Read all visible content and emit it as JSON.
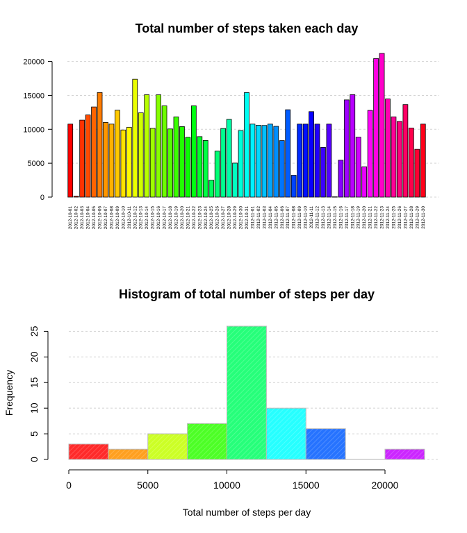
{
  "chart_data": [
    {
      "type": "bar",
      "title": "Total number of steps taken each day",
      "xlabel": "",
      "ylabel": "",
      "ylim": [
        0,
        21800
      ],
      "yticks": [
        0,
        5000,
        10000,
        15000,
        20000
      ],
      "grid": true,
      "colors": "rainbow palette (red → orange → yellow → green → cyan → blue → magenta → red)",
      "categories": [
        "2012-10-01",
        "2012-10-02",
        "2012-10-03",
        "2012-10-04",
        "2012-10-05",
        "2012-10-06",
        "2012-10-07",
        "2012-10-08",
        "2012-10-09",
        "2012-10-10",
        "2012-10-11",
        "2012-10-12",
        "2012-10-13",
        "2012-10-14",
        "2012-10-15",
        "2012-10-16",
        "2012-10-17",
        "2012-10-18",
        "2012-10-19",
        "2012-10-20",
        "2012-10-21",
        "2012-10-22",
        "2012-10-23",
        "2012-10-24",
        "2012-10-25",
        "2012-10-26",
        "2012-10-27",
        "2012-10-28",
        "2012-10-29",
        "2012-10-30",
        "2012-10-31",
        "2012-11-01",
        "2012-11-02",
        "2012-11-03",
        "2012-11-04",
        "2012-11-05",
        "2012-11-06",
        "2012-11-07",
        "2012-11-08",
        "2012-11-09",
        "2012-11-10",
        "2012-11-11",
        "2012-11-12",
        "2012-11-13",
        "2012-11-14",
        "2012-11-15",
        "2012-11-16",
        "2012-11-17",
        "2012-11-18",
        "2012-11-19",
        "2012-11-20",
        "2012-11-21",
        "2012-11-22",
        "2012-11-23",
        "2012-11-24",
        "2012-11-25",
        "2012-11-26",
        "2012-11-27",
        "2012-11-28",
        "2012-11-29",
        "2012-11-30"
      ],
      "values": [
        10766,
        126,
        11352,
        12116,
        13294,
        15420,
        11015,
        10766,
        12811,
        9900,
        10304,
        17382,
        12426,
        15098,
        10139,
        15084,
        13452,
        10056,
        11829,
        10395,
        8821,
        13460,
        8918,
        8355,
        2492,
        6778,
        10119,
        11458,
        5018,
        9819,
        15414,
        10766,
        10600,
        10571,
        10766,
        10439,
        8334,
        12883,
        3219,
        10766,
        10766,
        12608,
        10765,
        7336,
        10766,
        41,
        5441,
        14339,
        15110,
        8841,
        4472,
        12787,
        20427,
        21194,
        14478,
        11834,
        11162,
        13646,
        10183,
        7047,
        10766
      ]
    },
    {
      "type": "bar",
      "subtype": "histogram",
      "title": "Histogram of total number of steps per day",
      "xlabel": "Total number of steps per day",
      "ylabel": "Frequency",
      "xlim": [
        0,
        22500
      ],
      "ylim": [
        0,
        26
      ],
      "xticks": [
        0,
        5000,
        10000,
        15000,
        20000
      ],
      "yticks": [
        0,
        5,
        10,
        15,
        20,
        25
      ],
      "grid": true,
      "bins": [
        {
          "from": 0,
          "to": 2500,
          "count": 3,
          "color": "#ff2a2a"
        },
        {
          "from": 2500,
          "to": 5000,
          "count": 2,
          "color": "#ffa020"
        },
        {
          "from": 5000,
          "to": 7500,
          "count": 5,
          "color": "#ccff26"
        },
        {
          "from": 7500,
          "to": 10000,
          "count": 7,
          "color": "#4dff26"
        },
        {
          "from": 10000,
          "to": 12500,
          "count": 26,
          "color": "#26ff7a"
        },
        {
          "from": 12500,
          "to": 15000,
          "count": 10,
          "color": "#26ffff"
        },
        {
          "from": 15000,
          "to": 17500,
          "count": 6,
          "color": "#2673ff"
        },
        {
          "from": 17500,
          "to": 20000,
          "count": 0,
          "color": "#4d26ff"
        },
        {
          "from": 20000,
          "to": 22500,
          "count": 2,
          "color": "#cc26ff"
        }
      ]
    }
  ]
}
